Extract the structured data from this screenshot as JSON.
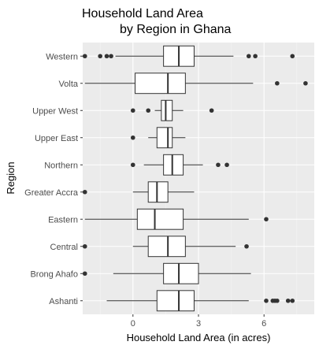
{
  "chart_data": {
    "type": "boxplot",
    "orientation": "horizontal",
    "title": "Household Land Area\n        by Region in Ghana",
    "xlabel": "Household Land Area (in acres)",
    "ylabel": "Region",
    "xlim": [
      -2.3,
      8.3
    ],
    "xticks": [
      0,
      3,
      6
    ],
    "grid": true,
    "background": "#ebebeb",
    "categories": [
      "Western",
      "Volta",
      "Upper West",
      "Upper East",
      "Northern",
      "Greater Accra",
      "Eastern",
      "Central",
      "Brong Ahafo",
      "Ashanti"
    ],
    "boxes": [
      {
        "category": "Western",
        "whisker_low": -0.8,
        "q1": 1.4,
        "median": 2.1,
        "q3": 2.8,
        "whisker_high": 4.6,
        "outliers": [
          -2.2,
          -1.5,
          -1.2,
          -1.0,
          5.3,
          5.6,
          7.3
        ]
      },
      {
        "category": "Volta",
        "whisker_low": -2.2,
        "q1": 0.1,
        "median": 1.6,
        "q3": 2.4,
        "whisker_high": 5.5,
        "outliers": [
          6.6,
          7.9
        ]
      },
      {
        "category": "Upper West",
        "whisker_low": 1.0,
        "q1": 1.3,
        "median": 1.5,
        "q3": 1.8,
        "whisker_high": 2.3,
        "outliers": [
          0.0,
          0.7,
          3.6
        ]
      },
      {
        "category": "Upper East",
        "whisker_low": 0.7,
        "q1": 1.1,
        "median": 1.6,
        "q3": 1.8,
        "whisker_high": 2.4,
        "outliers": [
          0.0
        ]
      },
      {
        "category": "Northern",
        "whisker_low": 0.5,
        "q1": 1.4,
        "median": 1.8,
        "q3": 2.3,
        "whisker_high": 3.2,
        "outliers": [
          0.0,
          3.9,
          4.3
        ]
      },
      {
        "category": "Greater Accra",
        "whisker_low": 0.0,
        "q1": 0.7,
        "median": 1.1,
        "q3": 1.6,
        "whisker_high": 2.8,
        "outliers": [
          -2.2
        ]
      },
      {
        "category": "Eastern",
        "whisker_low": -2.2,
        "q1": 0.2,
        "median": 1.0,
        "q3": 2.3,
        "whisker_high": 5.3,
        "outliers": [
          6.1
        ]
      },
      {
        "category": "Central",
        "whisker_low": 0.0,
        "q1": 0.7,
        "median": 1.6,
        "q3": 2.4,
        "whisker_high": 4.7,
        "outliers": [
          -2.2,
          5.2
        ]
      },
      {
        "category": "Brong Ahafo",
        "whisker_low": -0.9,
        "q1": 1.4,
        "median": 2.1,
        "q3": 3.0,
        "whisker_high": 5.4,
        "outliers": [
          -2.2
        ]
      },
      {
        "category": "Ashanti",
        "whisker_low": -1.2,
        "q1": 1.1,
        "median": 2.1,
        "q3": 2.8,
        "whisker_high": 5.3,
        "outliers": [
          6.1,
          6.4,
          6.6,
          6.5,
          7.1,
          7.3
        ]
      }
    ]
  }
}
